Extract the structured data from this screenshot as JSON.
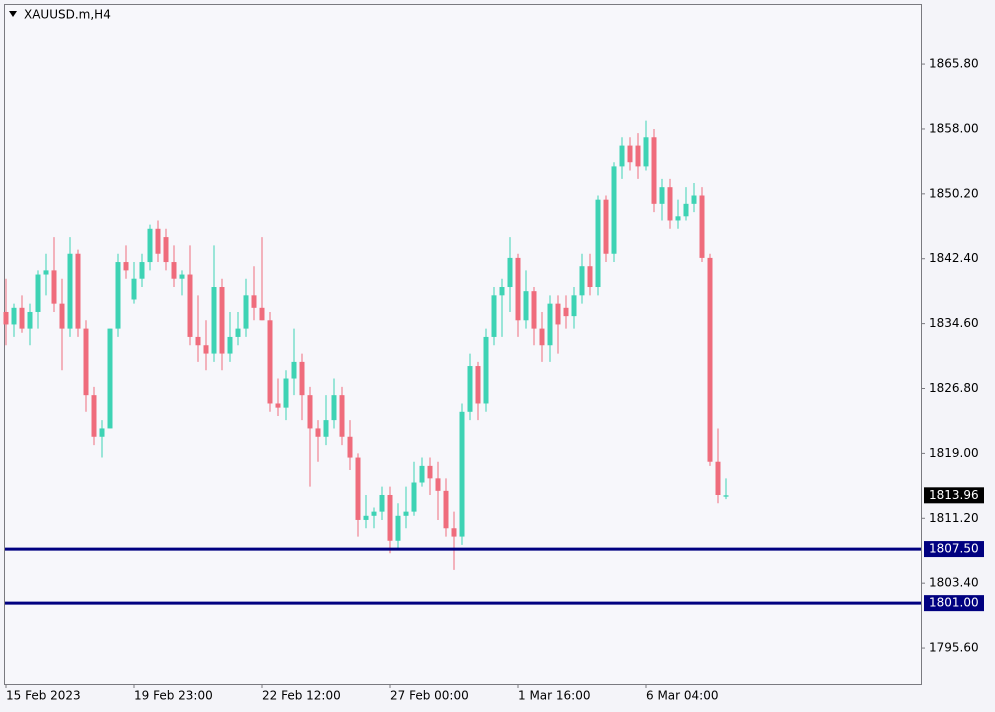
{
  "chart_data": {
    "type": "candlestick",
    "title": "XAUUSD.m,H4",
    "categories": [
      "15 Feb 2023",
      null,
      null,
      null,
      null,
      null,
      null,
      null,
      null,
      null,
      null,
      null,
      null,
      null,
      null,
      null,
      "19 Feb 23:00",
      null,
      null,
      null,
      null,
      null,
      null,
      null,
      null,
      null,
      null,
      null,
      null,
      null,
      null,
      null,
      "22 Feb 12:00",
      null,
      null,
      null,
      null,
      null,
      null,
      null,
      null,
      null,
      null,
      null,
      null,
      null,
      null,
      null,
      "27 Feb 00:00",
      null,
      null,
      null,
      null,
      null,
      null,
      null,
      null,
      null,
      null,
      null,
      null,
      null,
      null,
      null,
      "1 Mar 16:00",
      null,
      null,
      null,
      null,
      null,
      null,
      null,
      null,
      null,
      null,
      null,
      null,
      null,
      null,
      null,
      "6 Mar 04:00",
      null,
      null,
      null,
      null,
      null,
      null,
      null,
      null,
      null,
      null
    ],
    "open": [
      1836,
      1834.5,
      1836.5,
      1834,
      1836,
      1840.5,
      1841,
      1837,
      1834,
      1843,
      1834,
      1826,
      1821,
      1822,
      1834,
      1842,
      1837.5,
      1840,
      1842,
      1846,
      1845,
      1842,
      1840,
      1840.5,
      1833,
      1832,
      1831,
      1839,
      1831,
      1833,
      1834,
      1838,
      1836.5,
      1835,
      1825,
      1824.5,
      1828,
      1830,
      1826,
      1822,
      1821,
      1823,
      1826,
      1821,
      1818.5,
      1811,
      1811.5,
      1812,
      1814,
      1808.5,
      1811.5,
      1812,
      1815.5,
      1817.5,
      1816,
      1814.5,
      1810,
      1809,
      1824,
      1829.5,
      1825,
      1833,
      1838,
      1839,
      1842.5,
      1835,
      1838.5,
      1834,
      1832,
      1837,
      1836.5,
      1835.5,
      1838,
      1841.5,
      1839,
      1849.5,
      1843,
      1853.5,
      1856,
      1856,
      1853.5,
      1857,
      1849,
      1851,
      1847,
      1847.5,
      1849,
      1850,
      1842.5,
      1818,
      1813.8
    ],
    "high": [
      1840,
      1837,
      1838,
      1837,
      1841,
      1843,
      1845,
      1840,
      1845,
      1843.5,
      1835,
      1827,
      1823,
      1834,
      1843,
      1844,
      1842,
      1843,
      1846.5,
      1847,
      1846,
      1844,
      1841,
      1844,
      1838,
      1835,
      1844,
      1840,
      1836,
      1836,
      1840,
      1841.5,
      1845,
      1836,
      1828,
      1829,
      1834,
      1831,
      1827,
      1823,
      1826,
      1828,
      1827,
      1823,
      1819,
      1814,
      1812.5,
      1815,
      1815,
      1813,
      1815,
      1818,
      1818.5,
      1818.5,
      1818,
      1816,
      1812,
      1825,
      1831,
      1830,
      1834,
      1839,
      1840,
      1845,
      1843,
      1841,
      1839,
      1836,
      1838,
      1838,
      1838,
      1839,
      1843,
      1843,
      1850,
      1850,
      1854,
      1857,
      1857,
      1857.5,
      1859,
      1858,
      1852,
      1852,
      1849.5,
      1851,
      1851.5,
      1851,
      1843,
      1822,
      1816
    ],
    "low": [
      1832,
      1833,
      1833.5,
      1832,
      1834,
      1838,
      1836,
      1829,
      1833,
      1833,
      1824,
      1820,
      1818.5,
      1822,
      1833,
      1840,
      1837,
      1839,
      1841,
      1842,
      1841,
      1839,
      1838,
      1832,
      1830,
      1829,
      1830,
      1829,
      1830,
      1832,
      1833,
      1835,
      1835,
      1824,
      1823.5,
      1823,
      1826,
      1823,
      1815,
      1818,
      1820,
      1822,
      1820,
      1817,
      1809,
      1810,
      1810,
      1811,
      1807,
      1807.5,
      1810,
      1811.5,
      1815,
      1814,
      1811,
      1809,
      1805,
      1808,
      1823,
      1823,
      1824,
      1832,
      1833,
      1836,
      1833,
      1834,
      1832,
      1830,
      1830,
      1831,
      1834,
      1834,
      1837,
      1838,
      1838,
      1842,
      1842,
      1852,
      1853,
      1852,
      1853,
      1848,
      1847,
      1846,
      1846,
      1847,
      1848,
      1842,
      1817.5,
      1813,
      1813.5
    ],
    "close": [
      1834.5,
      1836.5,
      1834,
      1836,
      1840.5,
      1841,
      1837,
      1834,
      1843,
      1834,
      1826,
      1821,
      1822,
      1834,
      1842,
      1841,
      1840,
      1842,
      1846,
      1843,
      1842,
      1840,
      1840.5,
      1833,
      1832,
      1831,
      1839,
      1831,
      1833,
      1834,
      1838,
      1836.5,
      1835,
      1825,
      1824.5,
      1828,
      1830,
      1826,
      1822,
      1821,
      1823,
      1826,
      1821,
      1818.5,
      1811,
      1811.5,
      1812,
      1814,
      1808.5,
      1811.5,
      1812,
      1815.5,
      1817.5,
      1816,
      1814.5,
      1810,
      1809,
      1824,
      1829.5,
      1825,
      1833,
      1838,
      1839,
      1842.5,
      1835,
      1838.5,
      1834,
      1832,
      1837,
      1834.5,
      1835.5,
      1838,
      1841.5,
      1839,
      1849.5,
      1843,
      1853.5,
      1856,
      1854,
      1853.5,
      1857,
      1849,
      1851,
      1847,
      1847.5,
      1849,
      1850,
      1842.5,
      1818,
      1814,
      1813.96
    ],
    "up_color": "#3ed3b4",
    "down_color": "#ef6c7c",
    "ylim": [
      1791.4,
      1872.9
    ],
    "yticks": [
      {
        "value": 1865.8,
        "label": "1865.80"
      },
      {
        "value": 1858,
        "label": "1858.00"
      },
      {
        "value": 1850.2,
        "label": "1850.20"
      },
      {
        "value": 1842.4,
        "label": "1842.40"
      },
      {
        "value": 1834.6,
        "label": "1834.60"
      },
      {
        "value": 1826.8,
        "label": "1826.80"
      },
      {
        "value": 1819,
        "label": "1819.00"
      },
      {
        "value": 1811.2,
        "label": "1811.20"
      },
      {
        "value": 1803.4,
        "label": "1803.40"
      },
      {
        "value": 1795.6,
        "label": "1795.60"
      }
    ],
    "grid": false,
    "price_lines": [
      {
        "value": 1807.5,
        "label": "1807.50",
        "color": "#000080"
      },
      {
        "value": 1801,
        "label": "1801.00",
        "color": "#000080"
      }
    ],
    "current_price": {
      "value": 1813.96,
      "label": "1813.96",
      "color": "#000000"
    }
  }
}
